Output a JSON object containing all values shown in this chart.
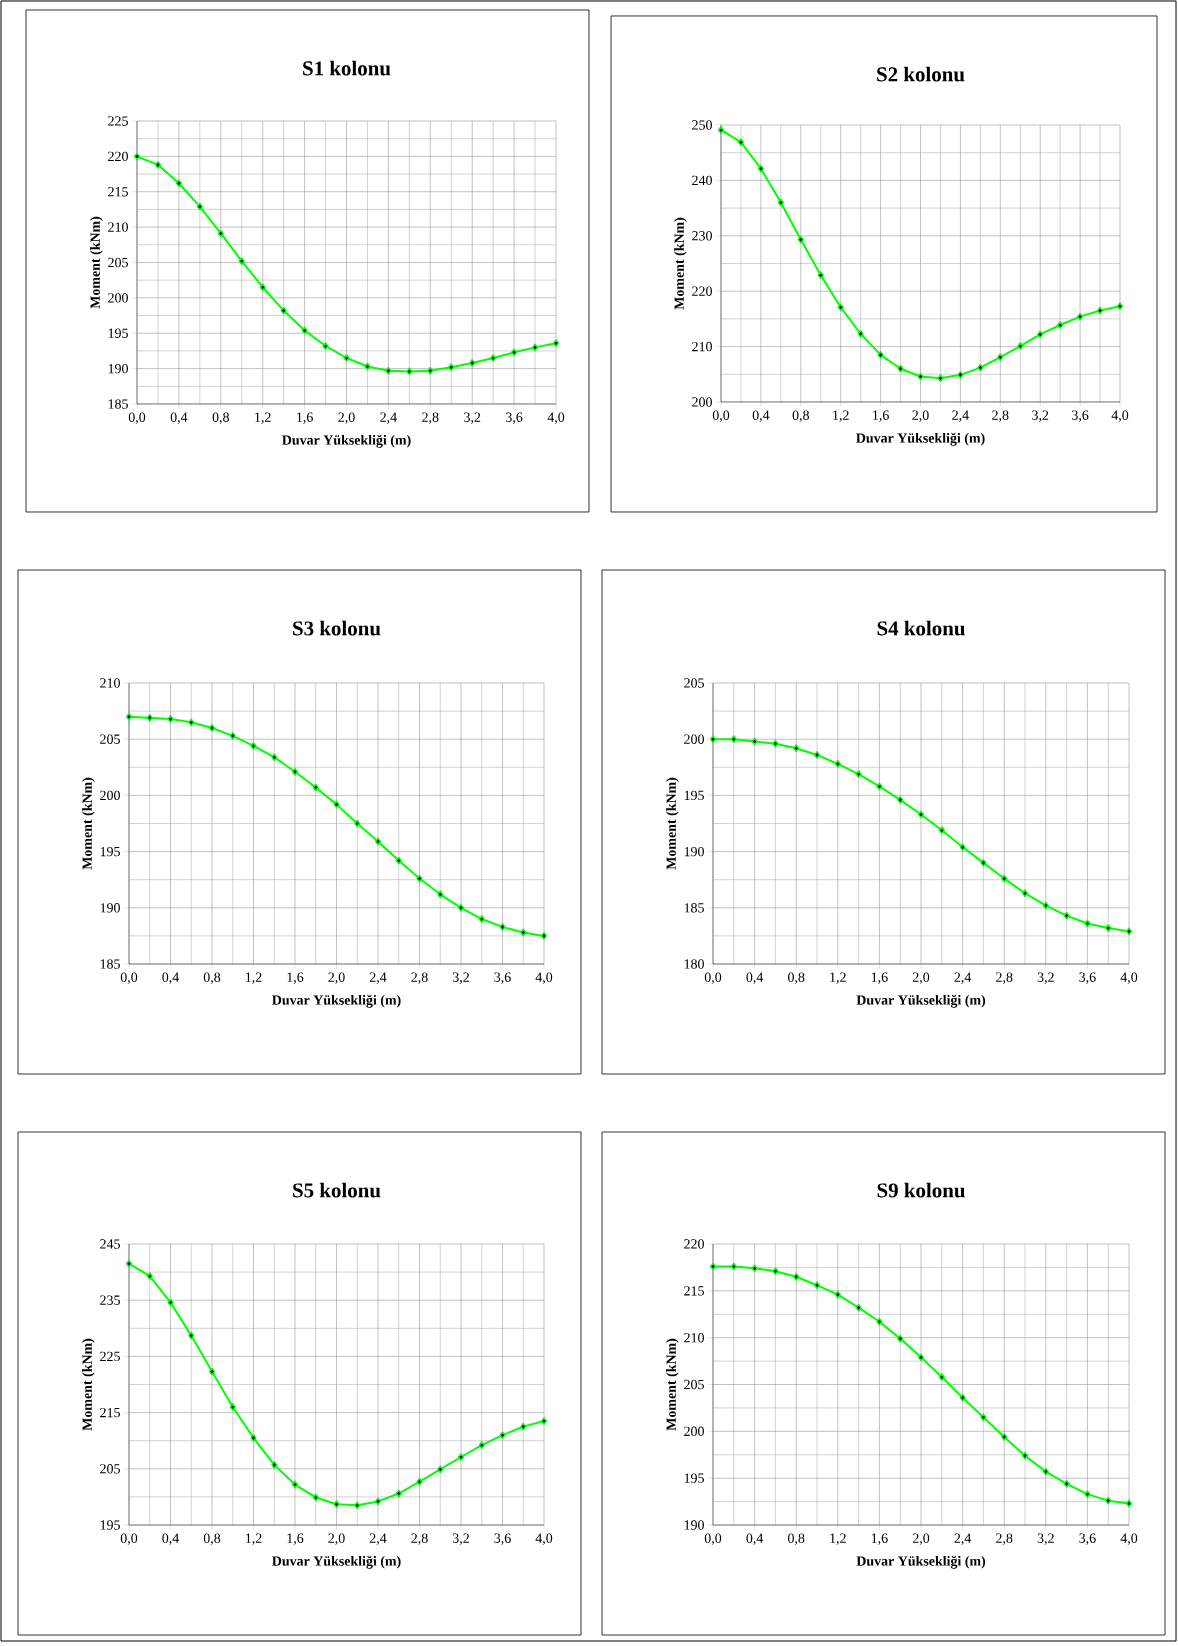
{
  "chart_data": [
    {
      "type": "line",
      "title": "S1 kolonu",
      "xlabel": "Duvar Yüksekliği (m)",
      "ylabel": "Moment (kNm)",
      "color": "#00ff00",
      "marker": "diamond",
      "grid": true,
      "xlim": [
        0,
        4
      ],
      "ylim": [
        185,
        225
      ],
      "yticks": [
        185,
        190,
        195,
        200,
        205,
        210,
        215,
        220,
        225
      ],
      "xticks": [
        {
          "value": 0,
          "label": "0,0"
        },
        {
          "value": 0.4,
          "label": "0,4"
        },
        {
          "value": 0.8,
          "label": "0,8"
        },
        {
          "value": 1.2,
          "label": "1,2"
        },
        {
          "value": 1.6,
          "label": "1,6"
        },
        {
          "value": 2.0,
          "label": "2,0"
        },
        {
          "value": 2.4,
          "label": "2,4"
        },
        {
          "value": 2.8,
          "label": "2,8"
        },
        {
          "value": 3.2,
          "label": "3,2"
        },
        {
          "value": 3.6,
          "label": "3,6"
        },
        {
          "value": 4.0,
          "label": "4,0"
        }
      ],
      "x": [
        0,
        0.2,
        0.4,
        0.6,
        0.8,
        1.0,
        1.2,
        1.4,
        1.6,
        1.8,
        2.0,
        2.2,
        2.4,
        2.6,
        2.8,
        3.0,
        3.2,
        3.4,
        3.6,
        3.8,
        4.0
      ],
      "values": [
        220.0,
        218.8,
        216.2,
        212.9,
        209.1,
        205.2,
        201.5,
        198.2,
        195.4,
        193.2,
        191.5,
        190.3,
        189.7,
        189.6,
        189.7,
        190.2,
        190.8,
        191.5,
        192.3,
        193.0,
        193.6
      ]
    },
    {
      "type": "line",
      "title": "S2 kolonu",
      "xlabel": "Duvar Yüksekliği (m)",
      "ylabel": "Moment (kNm)",
      "color": "#00ff00",
      "marker": "diamond",
      "grid": true,
      "xlim": [
        0,
        4
      ],
      "ylim": [
        200,
        250
      ],
      "yticks": [
        200,
        210,
        220,
        230,
        240,
        250
      ],
      "xticks": [
        {
          "value": 0,
          "label": "0,0"
        },
        {
          "value": 0.4,
          "label": "0,4"
        },
        {
          "value": 0.8,
          "label": "0,8"
        },
        {
          "value": 1.2,
          "label": "1,2"
        },
        {
          "value": 1.6,
          "label": "1,6"
        },
        {
          "value": 2.0,
          "label": "2,0"
        },
        {
          "value": 2.4,
          "label": "2,4"
        },
        {
          "value": 2.8,
          "label": "2,8"
        },
        {
          "value": 3.2,
          "label": "3,2"
        },
        {
          "value": 3.6,
          "label": "3,6"
        },
        {
          "value": 4.0,
          "label": "4,0"
        }
      ],
      "x": [
        0,
        0.2,
        0.4,
        0.6,
        0.8,
        1.0,
        1.2,
        1.4,
        1.6,
        1.8,
        2.0,
        2.2,
        2.4,
        2.6,
        2.8,
        3.0,
        3.2,
        3.4,
        3.6,
        3.8,
        4.0
      ],
      "values": [
        249.1,
        246.9,
        242.1,
        236.0,
        229.3,
        222.9,
        217.1,
        212.3,
        208.5,
        206.0,
        204.6,
        204.3,
        204.9,
        206.2,
        208.1,
        210.1,
        212.2,
        213.9,
        215.4,
        216.5,
        217.3
      ]
    },
    {
      "type": "line",
      "title": "S3 kolonu",
      "xlabel": "Duvar Yüksekliği (m)",
      "ylabel": "Moment (kNm)",
      "color": "#00ff00",
      "marker": "diamond",
      "grid": true,
      "xlim": [
        0,
        4
      ],
      "ylim": [
        185,
        210
      ],
      "yticks": [
        185,
        190,
        195,
        200,
        205,
        210
      ],
      "xticks": [
        {
          "value": 0,
          "label": "0,0"
        },
        {
          "value": 0.4,
          "label": "0,4"
        },
        {
          "value": 0.8,
          "label": "0,8"
        },
        {
          "value": 1.2,
          "label": "1,2"
        },
        {
          "value": 1.6,
          "label": "1,6"
        },
        {
          "value": 2.0,
          "label": "2,0"
        },
        {
          "value": 2.4,
          "label": "2,4"
        },
        {
          "value": 2.8,
          "label": "2,8"
        },
        {
          "value": 3.2,
          "label": "3,2"
        },
        {
          "value": 3.6,
          "label": "3,6"
        },
        {
          "value": 4.0,
          "label": "4,0"
        }
      ],
      "x": [
        0,
        0.2,
        0.4,
        0.6,
        0.8,
        1.0,
        1.2,
        1.4,
        1.6,
        1.8,
        2.0,
        2.2,
        2.4,
        2.6,
        2.8,
        3.0,
        3.2,
        3.4,
        3.6,
        3.8,
        4.0
      ],
      "values": [
        207.0,
        206.9,
        206.8,
        206.5,
        206.0,
        205.3,
        204.4,
        203.4,
        202.1,
        200.7,
        199.2,
        197.5,
        195.9,
        194.2,
        192.6,
        191.2,
        190.0,
        189.0,
        188.3,
        187.8,
        187.5
      ]
    },
    {
      "type": "line",
      "title": "S4 kolonu",
      "xlabel": "Duvar Yüksekliği (m)",
      "ylabel": "Moment (kNm)",
      "color": "#00ff00",
      "marker": "diamond",
      "grid": true,
      "xlim": [
        0,
        4
      ],
      "ylim": [
        180,
        205
      ],
      "yticks": [
        180,
        185,
        190,
        195,
        200,
        205
      ],
      "xticks": [
        {
          "value": 0,
          "label": "0,0"
        },
        {
          "value": 0.4,
          "label": "0,4"
        },
        {
          "value": 0.8,
          "label": "0,8"
        },
        {
          "value": 1.2,
          "label": "1,2"
        },
        {
          "value": 1.6,
          "label": "1,6"
        },
        {
          "value": 2.0,
          "label": "2,0"
        },
        {
          "value": 2.4,
          "label": "2,4"
        },
        {
          "value": 2.8,
          "label": "2,8"
        },
        {
          "value": 3.2,
          "label": "3,2"
        },
        {
          "value": 3.6,
          "label": "3,6"
        },
        {
          "value": 4.0,
          "label": "4,0"
        }
      ],
      "x": [
        0,
        0.2,
        0.4,
        0.6,
        0.8,
        1.0,
        1.2,
        1.4,
        1.6,
        1.8,
        2.0,
        2.2,
        2.4,
        2.6,
        2.8,
        3.0,
        3.2,
        3.4,
        3.6,
        3.8,
        4.0
      ],
      "values": [
        200.0,
        200.0,
        199.8,
        199.6,
        199.2,
        198.6,
        197.8,
        196.9,
        195.8,
        194.6,
        193.3,
        191.9,
        190.4,
        189.0,
        187.6,
        186.3,
        185.2,
        184.3,
        183.6,
        183.2,
        182.9
      ]
    },
    {
      "type": "line",
      "title": "S5 kolonu",
      "xlabel": "Duvar Yüksekliği (m)",
      "ylabel": "Moment (kNm)",
      "color": "#00ff00",
      "marker": "diamond",
      "grid": true,
      "xlim": [
        0,
        4
      ],
      "ylim": [
        195,
        245
      ],
      "yticks": [
        195,
        205,
        215,
        225,
        235,
        245
      ],
      "xticks": [
        {
          "value": 0,
          "label": "0,0"
        },
        {
          "value": 0.4,
          "label": "0,4"
        },
        {
          "value": 0.8,
          "label": "0,8"
        },
        {
          "value": 1.2,
          "label": "1,2"
        },
        {
          "value": 1.6,
          "label": "1,6"
        },
        {
          "value": 2.0,
          "label": "2,0"
        },
        {
          "value": 2.4,
          "label": "2,4"
        },
        {
          "value": 2.8,
          "label": "2,8"
        },
        {
          "value": 3.2,
          "label": "3,2"
        },
        {
          "value": 3.6,
          "label": "3,6"
        },
        {
          "value": 4.0,
          "label": "4,0"
        }
      ],
      "x": [
        0,
        0.2,
        0.4,
        0.6,
        0.8,
        1.0,
        1.2,
        1.4,
        1.6,
        1.8,
        2.0,
        2.2,
        2.4,
        2.6,
        2.8,
        3.0,
        3.2,
        3.4,
        3.6,
        3.8,
        4.0
      ],
      "values": [
        241.5,
        239.3,
        234.6,
        228.7,
        222.3,
        216.0,
        210.5,
        205.7,
        202.2,
        199.9,
        198.7,
        198.5,
        199.2,
        200.6,
        202.7,
        204.9,
        207.1,
        209.2,
        211.0,
        212.5,
        213.5
      ]
    },
    {
      "type": "line",
      "title": "S9 kolonu",
      "xlabel": "Duvar Yüksekliği (m)",
      "ylabel": "Moment (kNm)",
      "color": "#00ff00",
      "marker": "diamond",
      "grid": true,
      "xlim": [
        0,
        4
      ],
      "ylim": [
        190,
        220
      ],
      "yticks": [
        190,
        195,
        200,
        205,
        210,
        215,
        220
      ],
      "xticks": [
        {
          "value": 0,
          "label": "0,0"
        },
        {
          "value": 0.4,
          "label": "0,4"
        },
        {
          "value": 0.8,
          "label": "0,8"
        },
        {
          "value": 1.2,
          "label": "1,2"
        },
        {
          "value": 1.6,
          "label": "1,6"
        },
        {
          "value": 2.0,
          "label": "2,0"
        },
        {
          "value": 2.4,
          "label": "2,4"
        },
        {
          "value": 2.8,
          "label": "2,8"
        },
        {
          "value": 3.2,
          "label": "3,2"
        },
        {
          "value": 3.6,
          "label": "3,6"
        },
        {
          "value": 4.0,
          "label": "4,0"
        }
      ],
      "x": [
        0,
        0.2,
        0.4,
        0.6,
        0.8,
        1.0,
        1.2,
        1.4,
        1.6,
        1.8,
        2.0,
        2.2,
        2.4,
        2.6,
        2.8,
        3.0,
        3.2,
        3.4,
        3.6,
        3.8,
        4.0
      ],
      "values": [
        217.6,
        217.6,
        217.4,
        217.1,
        216.5,
        215.6,
        214.6,
        213.2,
        211.7,
        209.9,
        207.9,
        205.8,
        203.6,
        201.5,
        199.4,
        197.4,
        195.7,
        194.4,
        193.3,
        192.6,
        192.3
      ]
    }
  ]
}
